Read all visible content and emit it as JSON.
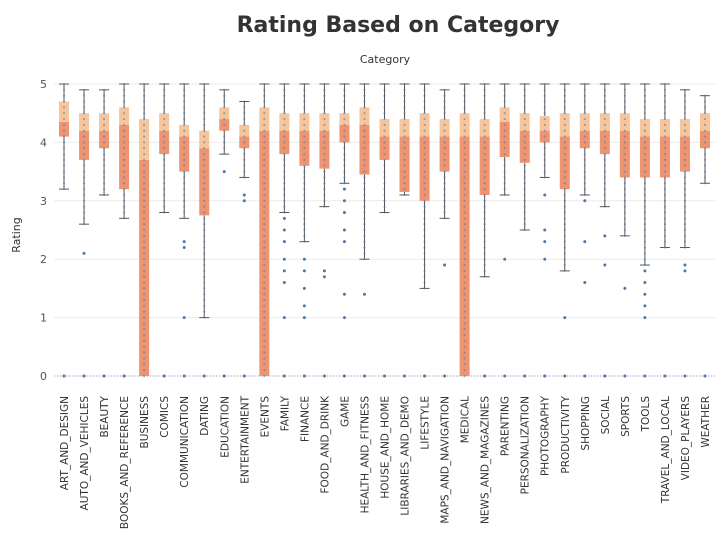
{
  "chart_data": {
    "type": "box",
    "title": "Rating Based on Category",
    "column_header": "Category",
    "ylabel": "Rating",
    "ylim": [
      0,
      5
    ],
    "yticks": [
      0,
      1,
      2,
      3,
      4,
      5
    ],
    "colors": {
      "lower_box": "#ef9470",
      "upper_box": "#f7c59b",
      "whisker": "#555555",
      "points": "#4e79a7",
      "grid": "#ebebeb"
    },
    "categories": [
      {
        "name": "ART_AND_DESIGN",
        "min": 3.2,
        "q1": 4.1,
        "median": 4.35,
        "q3": 4.7,
        "max": 5.0,
        "outliers": [
          0
        ]
      },
      {
        "name": "AUTO_AND_VEHICLES",
        "min": 2.6,
        "q1": 3.7,
        "median": 4.2,
        "q3": 4.5,
        "max": 4.9,
        "outliers": [
          2.1,
          0
        ]
      },
      {
        "name": "BEAUTY",
        "min": 3.1,
        "q1": 3.9,
        "median": 4.2,
        "q3": 4.5,
        "max": 4.9,
        "outliers": [
          0
        ]
      },
      {
        "name": "BOOKS_AND_REFERENCE",
        "min": 2.7,
        "q1": 3.2,
        "median": 4.3,
        "q3": 4.6,
        "max": 5.0,
        "outliers": [
          0
        ]
      },
      {
        "name": "BUSINESS",
        "min": 0,
        "q1": 0,
        "median": 3.7,
        "q3": 4.4,
        "max": 5.0,
        "outliers": []
      },
      {
        "name": "COMICS",
        "min": 2.8,
        "q1": 3.8,
        "median": 4.2,
        "q3": 4.5,
        "max": 5.0,
        "outliers": [
          0
        ]
      },
      {
        "name": "COMMUNICATION",
        "min": 2.7,
        "q1": 3.5,
        "median": 4.1,
        "q3": 4.3,
        "max": 5.0,
        "outliers": [
          2.3,
          2.2,
          1.0,
          0
        ]
      },
      {
        "name": "DATING",
        "min": 1.0,
        "q1": 2.75,
        "median": 3.9,
        "q3": 4.2,
        "max": 5.0,
        "outliers": [
          0
        ]
      },
      {
        "name": "EDUCATION",
        "min": 3.8,
        "q1": 4.2,
        "median": 4.4,
        "q3": 4.6,
        "max": 4.9,
        "outliers": [
          3.5,
          0
        ]
      },
      {
        "name": "ENTERTAINMENT",
        "min": 3.4,
        "q1": 3.9,
        "median": 4.1,
        "q3": 4.3,
        "max": 4.7,
        "outliers": [
          3.1,
          3.0,
          0
        ]
      },
      {
        "name": "EVENTS",
        "min": 0,
        "q1": 0,
        "median": 4.2,
        "q3": 4.6,
        "max": 5.0,
        "outliers": []
      },
      {
        "name": "FAMILY",
        "min": 2.8,
        "q1": 3.8,
        "median": 4.2,
        "q3": 4.5,
        "max": 5.0,
        "outliers": [
          2.7,
          2.5,
          2.3,
          2.0,
          1.8,
          1.6,
          1.0,
          0
        ]
      },
      {
        "name": "FINANCE",
        "min": 2.3,
        "q1": 3.6,
        "median": 4.2,
        "q3": 4.5,
        "max": 5.0,
        "outliers": [
          2.0,
          1.8,
          1.5,
          1.2,
          1.0,
          0
        ]
      },
      {
        "name": "FOOD_AND_DRINK",
        "min": 2.9,
        "q1": 3.55,
        "median": 4.2,
        "q3": 4.5,
        "max": 5.0,
        "outliers": [
          1.8,
          1.7,
          0
        ]
      },
      {
        "name": "GAME",
        "min": 3.3,
        "q1": 4.0,
        "median": 4.3,
        "q3": 4.5,
        "max": 5.0,
        "outliers": [
          3.2,
          3.0,
          2.8,
          2.5,
          2.3,
          1.4,
          1.0,
          0
        ]
      },
      {
        "name": "HEALTH_AND_FITNESS",
        "min": 2.0,
        "q1": 3.45,
        "median": 4.3,
        "q3": 4.6,
        "max": 5.0,
        "outliers": [
          1.4,
          0
        ]
      },
      {
        "name": "HOUSE_AND_HOME",
        "min": 2.8,
        "q1": 3.7,
        "median": 4.1,
        "q3": 4.4,
        "max": 5.0,
        "outliers": [
          0
        ]
      },
      {
        "name": "LIBRARIES_AND_DEMO",
        "min": 3.1,
        "q1": 3.15,
        "median": 4.1,
        "q3": 4.4,
        "max": 5.0,
        "outliers": [
          0
        ]
      },
      {
        "name": "LIFESTYLE",
        "min": 1.5,
        "q1": 3.0,
        "median": 4.1,
        "q3": 4.5,
        "max": 5.0,
        "outliers": [
          0
        ]
      },
      {
        "name": "MAPS_AND_NAVIGATION",
        "min": 2.7,
        "q1": 3.5,
        "median": 4.1,
        "q3": 4.4,
        "max": 4.9,
        "outliers": [
          1.9,
          0
        ]
      },
      {
        "name": "MEDICAL",
        "min": 0,
        "q1": 0,
        "median": 4.1,
        "q3": 4.5,
        "max": 5.0,
        "outliers": []
      },
      {
        "name": "NEWS_AND_MAGAZINES",
        "min": 1.7,
        "q1": 3.1,
        "median": 4.1,
        "q3": 4.4,
        "max": 5.0,
        "outliers": [
          0
        ]
      },
      {
        "name": "PARENTING",
        "min": 3.1,
        "q1": 3.75,
        "median": 4.35,
        "q3": 4.6,
        "max": 5.0,
        "outliers": [
          2.0,
          0
        ]
      },
      {
        "name": "PERSONALIZATION",
        "min": 2.5,
        "q1": 3.65,
        "median": 4.2,
        "q3": 4.5,
        "max": 5.0,
        "outliers": [
          0
        ]
      },
      {
        "name": "PHOTOGRAPHY",
        "min": 3.4,
        "q1": 4.0,
        "median": 4.2,
        "q3": 4.45,
        "max": 5.0,
        "outliers": [
          3.1,
          2.5,
          2.3,
          2.0,
          0
        ]
      },
      {
        "name": "PRODUCTIVITY",
        "min": 1.8,
        "q1": 3.2,
        "median": 4.1,
        "q3": 4.5,
        "max": 5.0,
        "outliers": [
          1.0,
          0
        ]
      },
      {
        "name": "SHOPPING",
        "min": 3.1,
        "q1": 3.9,
        "median": 4.2,
        "q3": 4.5,
        "max": 5.0,
        "outliers": [
          3.0,
          2.3,
          1.6,
          0
        ]
      },
      {
        "name": "SOCIAL",
        "min": 2.9,
        "q1": 3.8,
        "median": 4.2,
        "q3": 4.5,
        "max": 5.0,
        "outliers": [
          2.4,
          1.9,
          0
        ]
      },
      {
        "name": "SPORTS",
        "min": 2.4,
        "q1": 3.4,
        "median": 4.2,
        "q3": 4.5,
        "max": 5.0,
        "outliers": [
          1.5,
          0
        ]
      },
      {
        "name": "TOOLS",
        "min": 1.9,
        "q1": 3.4,
        "median": 4.1,
        "q3": 4.4,
        "max": 5.0,
        "outliers": [
          1.8,
          1.6,
          1.4,
          1.2,
          1.0,
          0
        ]
      },
      {
        "name": "TRAVEL_AND_LOCAL",
        "min": 2.2,
        "q1": 3.4,
        "median": 4.1,
        "q3": 4.4,
        "max": 5.0,
        "outliers": [
          0
        ]
      },
      {
        "name": "VIDEO_PLAYERS",
        "min": 2.2,
        "q1": 3.5,
        "median": 4.1,
        "q3": 4.4,
        "max": 4.9,
        "outliers": [
          1.9,
          1.8,
          0
        ]
      },
      {
        "name": "WEATHER",
        "min": 3.3,
        "q1": 3.9,
        "median": 4.2,
        "q3": 4.5,
        "max": 4.8,
        "outliers": [
          0
        ]
      }
    ]
  }
}
